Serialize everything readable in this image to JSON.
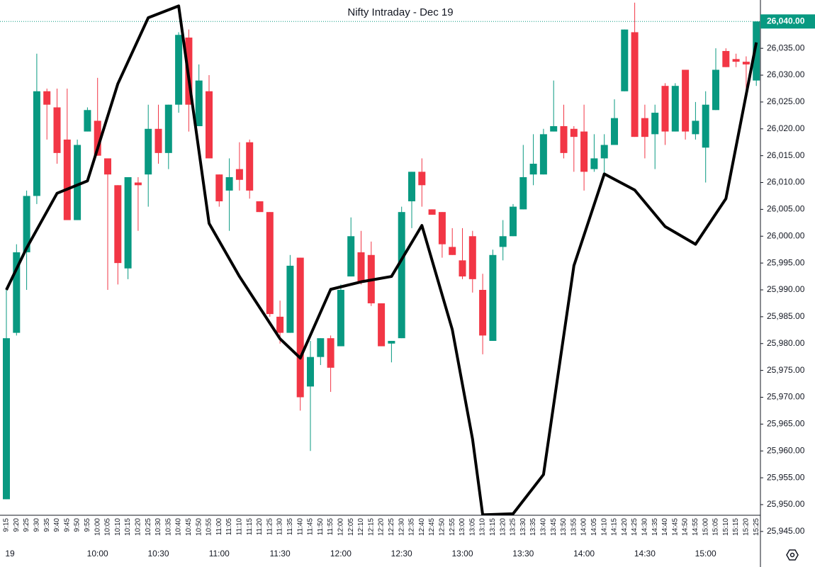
{
  "chart_data": {
    "type": "candlestick",
    "title": "Nifty Intraday - Dec 19",
    "categories": [
      "9:15",
      "9:20",
      "9:25",
      "9:30",
      "9:35",
      "9:40",
      "9:45",
      "9:50",
      "9:55",
      "10:00",
      "10:05",
      "10:10",
      "10:15",
      "10:20",
      "10:25",
      "10:30",
      "10:35",
      "10:40",
      "10:45",
      "10:50",
      "10:55",
      "11:00",
      "11:05",
      "11:10",
      "11:15",
      "11:20",
      "11:25",
      "11:30",
      "11:35",
      "11:40",
      "11:45",
      "11:50",
      "11:55",
      "12:00",
      "12:05",
      "12:10",
      "12:15",
      "12:20",
      "12:25",
      "12:30",
      "12:35",
      "12:40",
      "12:45",
      "12:50",
      "12:55",
      "13:00",
      "13:05",
      "13:10",
      "13:15",
      "13:20",
      "13:25",
      "13:30",
      "13:35",
      "13:40",
      "13:45",
      "13:50",
      "13:55",
      "14:00",
      "14:05",
      "14:10",
      "14:15",
      "14:20",
      "14:25",
      "14:30",
      "14:35",
      "14:40",
      "14:45",
      "14:50",
      "14:55",
      "15:00",
      "15:05",
      "15:10",
      "15:15",
      "15:20",
      "15:25"
    ],
    "time_labels": [
      "19",
      "10:00",
      "10:30",
      "11:00",
      "11:30",
      "12:00",
      "12:30",
      "13:00",
      "13:30",
      "14:00",
      "14:30",
      "15:00"
    ],
    "open": [
      25951,
      25982,
      25997,
      26007.5,
      26027,
      26024,
      26018,
      26003,
      26019.5,
      26021.5,
      26014.5,
      26009.5,
      25994,
      26010,
      26011.5,
      26020,
      26015.5,
      26024.5,
      26037,
      26020.5,
      26027,
      26011.5,
      26008.5,
      26012.5,
      26017.5,
      26006.5,
      26004.5,
      25985,
      25982,
      25996,
      25972,
      25977.5,
      25981,
      25979.5,
      25992.5,
      25997,
      25996.5,
      25987.5,
      25980,
      25981,
      26006.5,
      26012,
      26005,
      26004.5,
      25998,
      25995.5,
      26000,
      25990,
      25980.5,
      25998,
      26000,
      26005,
      26011.5,
      26011.5,
      26019.5,
      26020.5,
      26020,
      26019.5,
      26012.5,
      26014.5,
      26017,
      26027,
      26038,
      26022,
      26019,
      26028,
      26019.5,
      26031,
      26019,
      26016.5,
      26023.5,
      26034.5,
      26033,
      26032.5,
      26029
    ],
    "high": [
      25990,
      25998.5,
      26008.5,
      26034,
      26027.5,
      26027.5,
      26027.5,
      26018,
      26024,
      26029.5,
      26014.5,
      26009.5,
      26011,
      26011,
      26024.5,
      26024.5,
      26024.5,
      26038,
      26038.5,
      26032,
      26030,
      26011.5,
      26014.5,
      26017.5,
      26018,
      26006.5,
      26004.5,
      25988,
      25996.5,
      25996,
      25980.5,
      25981,
      25981.5,
      25991,
      26003.5,
      26001,
      25999,
      25987.5,
      25980.5,
      26005.5,
      26012,
      26014.5,
      26005,
      26004.5,
      26001.5,
      26001.5,
      26001,
      25993,
      25997.5,
      26003,
      26006,
      26017,
      26019,
      26020,
      26029,
      26024.5,
      26020.5,
      26024.5,
      26019,
      26019,
      26025.5,
      26038.5,
      26043.5,
      26024.5,
      26024.5,
      26028.5,
      26028.5,
      26031,
      26025,
      26027,
      26035,
      26035,
      26034,
      26033.5,
      26040
    ],
    "low": [
      25951,
      25981.5,
      25990,
      26006,
      26018,
      26013.5,
      26003,
      26003,
      26019.5,
      26015,
      25990,
      25991,
      25992,
      26001,
      26005.5,
      26013.5,
      26012.5,
      26023,
      26019.5,
      26020.5,
      26014.5,
      26005.5,
      26001,
      26008.5,
      26007,
      26004.5,
      25985,
      25980,
      25982,
      25967.5,
      25960,
      25976,
      25971,
      25979.5,
      25992.5,
      25991,
      25987,
      25979.5,
      25976.5,
      25981,
      26001.5,
      26005.5,
      26004,
      25996,
      25996.5,
      25992,
      25989.5,
      25978,
      25980.5,
      25995.5,
      26000,
      26005,
      26009.5,
      26011.5,
      26019.5,
      26014.5,
      26012,
      26008.5,
      26012,
      26011.5,
      26017,
      26027,
      26018.5,
      26014.5,
      26012.5,
      26017,
      26019.5,
      26018,
      26018,
      26010,
      26023.5,
      26031.5,
      26031.5,
      26027,
      26028
    ],
    "close": [
      25981,
      25997,
      26007.5,
      26027,
      26024.5,
      26015.5,
      26003,
      26017,
      26023.5,
      26015,
      26011.5,
      25995,
      26011,
      26009.5,
      26020,
      26015.5,
      26024.5,
      26037.5,
      26024.5,
      26029,
      26014.5,
      26006.5,
      26011,
      26010.5,
      26008.5,
      26004.5,
      25985.5,
      25982,
      25994.5,
      25970,
      25977.5,
      25981,
      25975.5,
      25990,
      26000,
      25991.5,
      25987.5,
      25979.5,
      25980.5,
      26004.5,
      26012,
      26009.5,
      26004,
      25998.5,
      25996.5,
      25992.5,
      25992,
      25981.5,
      25996.5,
      26000,
      26005.5,
      26011,
      26013.5,
      26019,
      26020.5,
      26015.5,
      26018.5,
      26012,
      26014.5,
      26017,
      26022,
      26038.5,
      26018.5,
      26018.5,
      26023,
      26019.5,
      26028,
      26019.5,
      26021.5,
      26024.5,
      26031,
      26031.5,
      26032.5,
      26032,
      26040
    ],
    "up_color": "#089981",
    "down_color": "#f23645",
    "line": {
      "color": "#000000",
      "x": [
        "9:15",
        "9:25",
        "9:40",
        "9:55",
        "10:10",
        "10:25",
        "10:40",
        "10:55",
        "11:10",
        "11:30",
        "11:40",
        "11:55",
        "12:10",
        "12:25",
        "12:40",
        "12:55",
        "13:05",
        "13:10",
        "13:25",
        "13:40",
        "13:55",
        "14:10",
        "14:25",
        "14:40",
        "14:55",
        "15:10",
        "15:25"
      ],
      "values": [
        25990,
        25997.8,
        26008,
        26010.3,
        26028.4,
        26040.7,
        26042.9,
        26002.4,
        25992.5,
        25980.9,
        25977.3,
        25990.1,
        25991.5,
        25992.5,
        26002,
        25982.6,
        25962.2,
        25948.1,
        25948.3,
        25955.6,
        25994.5,
        26011.6,
        26008.6,
        26001.8,
        25998.5,
        26007,
        26036.1
      ]
    },
    "last_price": {
      "value": 26040,
      "label": "26,040.00"
    },
    "ylim": [
      25943,
      26044
    ],
    "yticks": [
      {
        "value": 25945,
        "label": "25,945.00"
      },
      {
        "value": 25950,
        "label": "25,950.00"
      },
      {
        "value": 25955,
        "label": "25,955.00"
      },
      {
        "value": 25960,
        "label": "25,960.00"
      },
      {
        "value": 25965,
        "label": "25,965.00"
      },
      {
        "value": 25970,
        "label": "25,970.00"
      },
      {
        "value": 25975,
        "label": "25,975.00"
      },
      {
        "value": 25980,
        "label": "25,980.00"
      },
      {
        "value": 25985,
        "label": "25,985.00"
      },
      {
        "value": 25990,
        "label": "25,990.00"
      },
      {
        "value": 25995,
        "label": "25,995.00"
      },
      {
        "value": 26000,
        "label": "26,000.00"
      },
      {
        "value": 26005,
        "label": "26,005.00"
      },
      {
        "value": 26010,
        "label": "26,010.00"
      },
      {
        "value": 26015,
        "label": "26,015.00"
      },
      {
        "value": 26020,
        "label": "26,020.00"
      },
      {
        "value": 26025,
        "label": "26,025.00"
      },
      {
        "value": 26030,
        "label": "26,030.00"
      },
      {
        "value": 26035,
        "label": "26,035.00"
      }
    ]
  }
}
